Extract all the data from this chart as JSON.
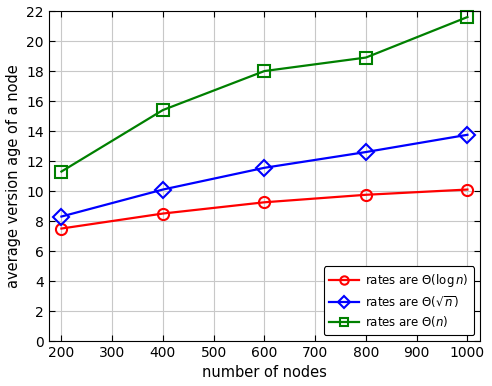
{
  "x": [
    200,
    400,
    600,
    800,
    1000
  ],
  "y_log": [
    7.5,
    8.5,
    9.25,
    9.75,
    10.1
  ],
  "y_sqrt": [
    8.3,
    10.1,
    11.55,
    12.6,
    13.75
  ],
  "y_n": [
    11.3,
    15.4,
    18.0,
    18.9,
    21.6
  ],
  "color_log": "#ff0000",
  "color_sqrt": "#0000ff",
  "color_n": "#008000",
  "xlabel": "number of nodes",
  "ylabel": "average version age of a node",
  "xlim": [
    175,
    1025
  ],
  "ylim": [
    0,
    22
  ],
  "xticks": [
    200,
    300,
    400,
    500,
    600,
    700,
    800,
    900,
    1000
  ],
  "yticks": [
    0,
    2,
    4,
    6,
    8,
    10,
    12,
    14,
    16,
    18,
    20,
    22
  ],
  "grid_color": "#c8c8c8",
  "background_color": "#ffffff",
  "linewidth": 1.6,
  "markersize": 8
}
